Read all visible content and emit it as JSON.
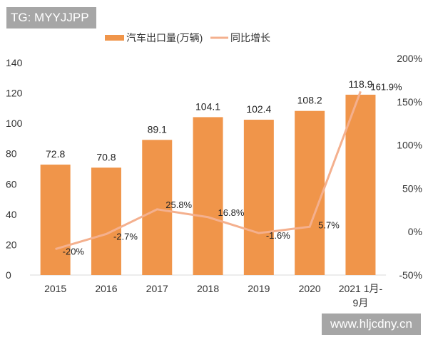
{
  "watermarks": {
    "top_left": "TG: MYYJJPP",
    "bottom_right": "www.hljcdny.cn"
  },
  "chart_data": {
    "type": "bar",
    "categories": [
      "2015",
      "2016",
      "2017",
      "2018",
      "2019",
      "2020",
      "2021 1月-9月"
    ],
    "category_lines": [
      [
        "2015"
      ],
      [
        "2016"
      ],
      [
        "2017"
      ],
      [
        "2018"
      ],
      [
        "2019"
      ],
      [
        "2020"
      ],
      [
        "2021 1月-",
        "9月"
      ]
    ],
    "series": [
      {
        "name": "汽车出口量(万辆)",
        "type": "bar",
        "axis": "left",
        "color": "#f0954a",
        "values": [
          72.8,
          70.8,
          89.1,
          104.1,
          102.4,
          108.2,
          118.9
        ],
        "labels": [
          "72.8",
          "70.8",
          "89.1",
          "104.1",
          "102.4",
          "108.2",
          "118.9"
        ]
      },
      {
        "name": "同比增长",
        "type": "line",
        "axis": "right",
        "color": "#f4b08e",
        "values": [
          -20,
          -2.7,
          25.8,
          16.8,
          -1.6,
          5.7,
          161.9
        ],
        "labels": [
          "-20%",
          "-2.7%",
          "25.8%",
          "16.8%",
          "-1.6%",
          "5.7%",
          "161.9%"
        ]
      }
    ],
    "left_axis": {
      "range": [
        0,
        140
      ],
      "ticks": [
        "0",
        "20",
        "40",
        "60",
        "80",
        "100",
        "120",
        "140"
      ]
    },
    "right_axis": {
      "range": [
        -50,
        200
      ],
      "ticks": [
        "-50%",
        "0%",
        "50%",
        "100%",
        "150%",
        "200%"
      ]
    },
    "legend": "top",
    "grid": false
  }
}
